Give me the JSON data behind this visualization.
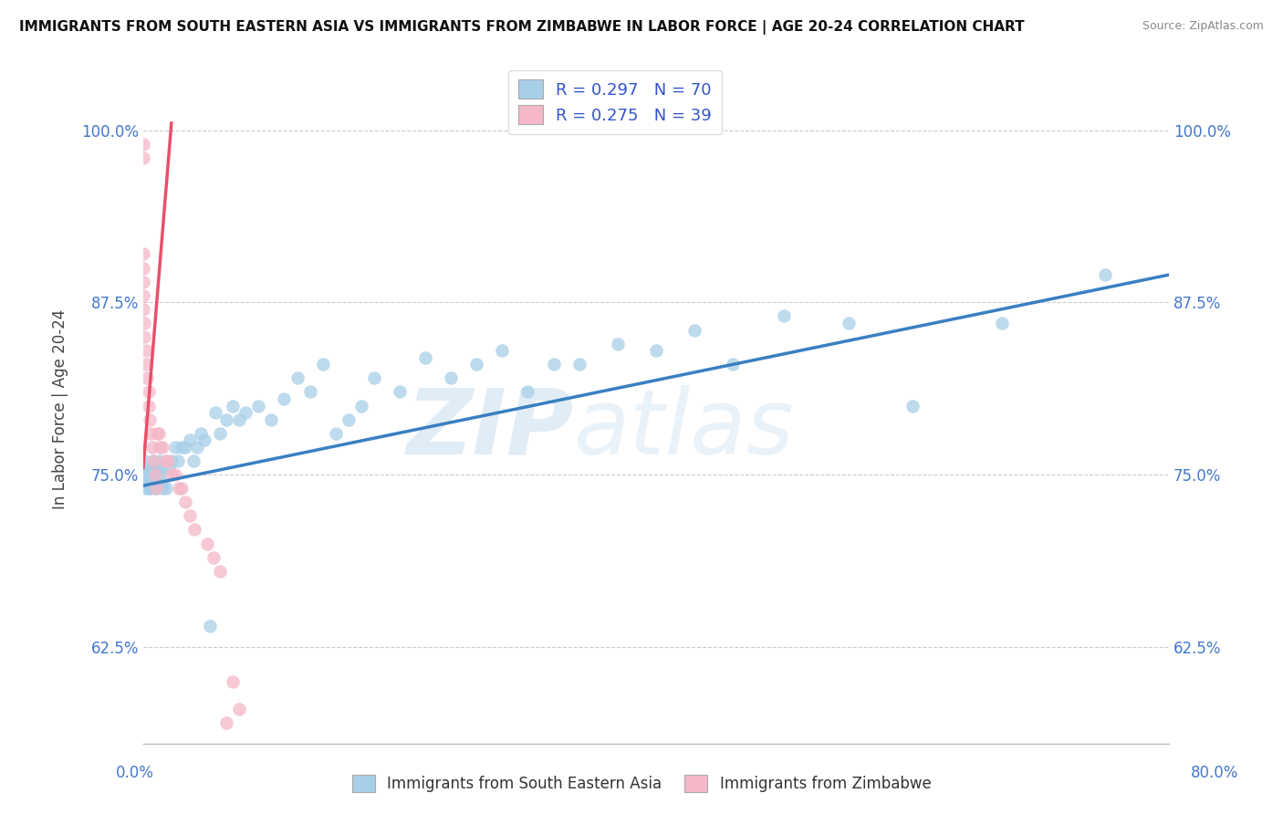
{
  "title": "IMMIGRANTS FROM SOUTH EASTERN ASIA VS IMMIGRANTS FROM ZIMBABWE IN LABOR FORCE | AGE 20-24 CORRELATION CHART",
  "source": "Source: ZipAtlas.com",
  "ylabel": "In Labor Force | Age 20-24",
  "y_ticks": [
    "62.5%",
    "75.0%",
    "87.5%",
    "100.0%"
  ],
  "y_tick_vals": [
    0.625,
    0.75,
    0.875,
    1.0
  ],
  "xlim": [
    0.0,
    0.8
  ],
  "ylim": [
    0.555,
    1.04
  ],
  "legend_R_blue": "R = 0.297",
  "legend_N_blue": "N = 70",
  "legend_R_pink": "R = 0.275",
  "legend_N_pink": "N = 39",
  "blue_color": "#a8cfe8",
  "pink_color": "#f4b8c8",
  "blue_line_color": "#3a7fc1",
  "pink_line_color": "#e8506a",
  "blue_scatter_x": [
    0.0,
    0.0,
    0.001,
    0.001,
    0.002,
    0.002,
    0.003,
    0.003,
    0.004,
    0.005,
    0.005,
    0.006,
    0.006,
    0.007,
    0.007,
    0.008,
    0.009,
    0.01,
    0.011,
    0.012,
    0.013,
    0.014,
    0.015,
    0.016,
    0.018,
    0.02,
    0.022,
    0.025,
    0.027,
    0.03,
    0.033,
    0.036,
    0.039,
    0.042,
    0.045,
    0.048,
    0.052,
    0.056,
    0.06,
    0.065,
    0.07,
    0.075,
    0.08,
    0.09,
    0.1,
    0.11,
    0.12,
    0.13,
    0.14,
    0.15,
    0.16,
    0.17,
    0.18,
    0.2,
    0.22,
    0.24,
    0.26,
    0.28,
    0.3,
    0.32,
    0.34,
    0.37,
    0.4,
    0.43,
    0.46,
    0.5,
    0.55,
    0.6,
    0.67,
    0.75
  ],
  "blue_scatter_y": [
    0.755,
    0.745,
    0.75,
    0.76,
    0.74,
    0.755,
    0.745,
    0.75,
    0.74,
    0.755,
    0.745,
    0.74,
    0.755,
    0.745,
    0.755,
    0.76,
    0.75,
    0.74,
    0.755,
    0.75,
    0.76,
    0.755,
    0.74,
    0.745,
    0.74,
    0.755,
    0.76,
    0.77,
    0.76,
    0.77,
    0.77,
    0.775,
    0.76,
    0.77,
    0.78,
    0.775,
    0.64,
    0.795,
    0.78,
    0.79,
    0.8,
    0.79,
    0.795,
    0.8,
    0.79,
    0.805,
    0.82,
    0.81,
    0.83,
    0.78,
    0.79,
    0.8,
    0.82,
    0.81,
    0.835,
    0.82,
    0.83,
    0.84,
    0.81,
    0.83,
    0.83,
    0.845,
    0.84,
    0.855,
    0.83,
    0.865,
    0.86,
    0.8,
    0.86,
    0.895
  ],
  "pink_scatter_x": [
    0.0,
    0.0,
    0.0,
    0.0,
    0.0,
    0.0,
    0.0,
    0.001,
    0.001,
    0.002,
    0.002,
    0.003,
    0.004,
    0.004,
    0.005,
    0.006,
    0.007,
    0.008,
    0.009,
    0.01,
    0.011,
    0.012,
    0.013,
    0.015,
    0.017,
    0.019,
    0.022,
    0.025,
    0.028,
    0.03,
    0.033,
    0.036,
    0.04,
    0.05,
    0.055,
    0.06,
    0.065,
    0.07,
    0.075
  ],
  "pink_scatter_y": [
    0.99,
    0.98,
    0.91,
    0.9,
    0.89,
    0.88,
    0.87,
    0.86,
    0.85,
    0.84,
    0.83,
    0.82,
    0.81,
    0.8,
    0.79,
    0.78,
    0.77,
    0.76,
    0.75,
    0.74,
    0.78,
    0.78,
    0.77,
    0.77,
    0.76,
    0.76,
    0.75,
    0.75,
    0.74,
    0.74,
    0.73,
    0.72,
    0.71,
    0.7,
    0.69,
    0.68,
    0.57,
    0.6,
    0.58
  ],
  "blue_line_x": [
    0.0,
    0.8
  ],
  "blue_line_y": [
    0.742,
    0.895
  ],
  "pink_line_x": [
    0.0,
    0.022
  ],
  "pink_line_y": [
    0.755,
    1.005
  ]
}
